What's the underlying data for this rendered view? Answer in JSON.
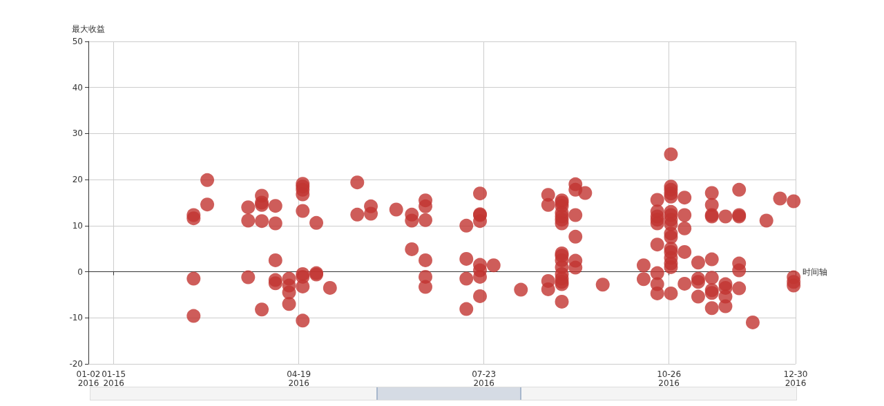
{
  "chart_data": {
    "type": "scatter",
    "xlabel": "时间轴",
    "ylabel": "最大收益",
    "color": "#c23531",
    "marker": "circle",
    "grid": true,
    "xlim": [
      "2016-01-02",
      "2016-12-30"
    ],
    "xticks": [
      {
        "value": "2016-01-02",
        "label": "01-02\n2016"
      },
      {
        "value": "2016-01-15",
        "label": "01-15\n2016"
      },
      {
        "value": "2016-04-19",
        "label": "04-19\n2016"
      },
      {
        "value": "2016-07-23",
        "label": "07-23\n2016"
      },
      {
        "value": "2016-10-26",
        "label": "10-26\n2016"
      },
      {
        "value": "2016-12-30",
        "label": "12-30\n2016"
      }
    ],
    "ylim": [
      -20,
      50
    ],
    "yticks": [
      -20,
      -10,
      0,
      10,
      20,
      30,
      40,
      50
    ],
    "x": [
      "2016-02-25",
      "2016-02-25",
      "2016-02-25",
      "2016-02-25",
      "2016-03-03",
      "2016-03-03",
      "2016-03-24",
      "2016-03-24",
      "2016-03-24",
      "2016-03-31",
      "2016-03-31",
      "2016-03-31",
      "2016-03-31",
      "2016-03-31",
      "2016-04-07",
      "2016-04-07",
      "2016-04-07",
      "2016-04-07",
      "2016-04-07",
      "2016-04-14",
      "2016-04-14",
      "2016-04-14",
      "2016-04-14",
      "2016-04-21",
      "2016-04-21",
      "2016-04-21",
      "2016-04-21",
      "2016-04-21",
      "2016-04-21",
      "2016-04-21",
      "2016-04-21",
      "2016-04-21",
      "2016-04-28",
      "2016-04-28",
      "2016-04-28",
      "2016-05-05",
      "2016-05-19",
      "2016-05-19",
      "2016-05-26",
      "2016-05-26",
      "2016-06-08",
      "2016-06-16",
      "2016-06-16",
      "2016-06-16",
      "2016-06-23",
      "2016-06-23",
      "2016-06-23",
      "2016-06-23",
      "2016-06-23",
      "2016-06-23",
      "2016-07-14",
      "2016-07-14",
      "2016-07-14",
      "2016-07-14",
      "2016-07-21",
      "2016-07-21",
      "2016-07-21",
      "2016-07-21",
      "2016-07-21",
      "2016-07-21",
      "2016-07-21",
      "2016-07-21",
      "2016-07-28",
      "2016-08-11",
      "2016-08-25",
      "2016-08-25",
      "2016-08-25",
      "2016-08-25",
      "2016-09-01",
      "2016-09-01",
      "2016-09-01",
      "2016-09-01",
      "2016-09-01",
      "2016-09-01",
      "2016-09-01",
      "2016-09-01",
      "2016-09-01",
      "2016-09-01",
      "2016-09-01",
      "2016-09-01",
      "2016-09-01",
      "2016-09-01",
      "2016-09-01",
      "2016-09-01",
      "2016-09-08",
      "2016-09-08",
      "2016-09-08",
      "2016-09-08",
      "2016-09-08",
      "2016-09-08",
      "2016-09-13",
      "2016-09-22",
      "2016-10-13",
      "2016-10-13",
      "2016-10-20",
      "2016-10-20",
      "2016-10-20",
      "2016-10-20",
      "2016-10-20",
      "2016-10-20",
      "2016-10-20",
      "2016-10-20",
      "2016-10-20",
      "2016-10-27",
      "2016-10-27",
      "2016-10-27",
      "2016-10-27",
      "2016-10-27",
      "2016-10-27",
      "2016-10-27",
      "2016-10-27",
      "2016-10-27",
      "2016-10-27",
      "2016-10-27",
      "2016-10-27",
      "2016-10-27",
      "2016-10-27",
      "2016-10-27",
      "2016-10-27",
      "2016-10-27",
      "2016-11-03",
      "2016-11-03",
      "2016-11-03",
      "2016-11-03",
      "2016-11-03",
      "2016-11-10",
      "2016-11-10",
      "2016-11-10",
      "2016-11-10",
      "2016-11-17",
      "2016-11-17",
      "2016-11-17",
      "2016-11-17",
      "2016-11-17",
      "2016-11-17",
      "2016-11-17",
      "2016-11-17",
      "2016-11-17",
      "2016-11-24",
      "2016-11-24",
      "2016-11-24",
      "2016-11-24",
      "2016-11-24",
      "2016-12-01",
      "2016-12-01",
      "2016-12-01",
      "2016-12-01",
      "2016-12-01",
      "2016-12-01",
      "2016-12-08",
      "2016-12-15",
      "2016-12-22",
      "2016-12-29",
      "2016-12-29",
      "2016-12-29",
      "2016-12-29"
    ],
    "values": [
      12.3,
      11.6,
      -1.5,
      -9.6,
      19.9,
      14.6,
      14.0,
      11.1,
      -1.2,
      16.5,
      15.0,
      14.5,
      11.0,
      -8.2,
      14.3,
      10.5,
      2.5,
      -1.8,
      -2.5,
      -1.5,
      -3.0,
      -4.5,
      -7.0,
      19.1,
      18.5,
      17.8,
      16.8,
      13.2,
      -0.5,
      -1.1,
      -3.2,
      -10.6,
      10.6,
      -0.3,
      -0.6,
      -3.5,
      19.4,
      12.4,
      14.2,
      12.6,
      13.5,
      12.4,
      11.1,
      4.9,
      15.5,
      14.2,
      11.2,
      2.5,
      -1.1,
      -3.3,
      10.0,
      2.8,
      -1.5,
      -8.1,
      17.0,
      12.5,
      12.3,
      11.0,
      1.5,
      0.3,
      -1.1,
      -5.3,
      1.4,
      -3.9,
      16.7,
      14.5,
      -2.0,
      -3.8,
      15.5,
      15.0,
      14.3,
      12.8,
      12.0,
      11.3,
      10.5,
      4.0,
      3.5,
      2.5,
      1.0,
      -0.5,
      -1.5,
      -2.2,
      -2.7,
      -6.5,
      19.0,
      17.8,
      12.3,
      7.6,
      2.4,
      0.9,
      17.1,
      -2.8,
      1.4,
      -1.6,
      15.6,
      13.1,
      12.0,
      11.3,
      10.5,
      5.9,
      -0.3,
      -2.7,
      -4.7,
      25.5,
      18.5,
      17.8,
      17.0,
      16.3,
      13.0,
      12.3,
      11.3,
      10.3,
      8.3,
      7.5,
      5.0,
      4.3,
      3.0,
      1.8,
      1.0,
      -4.7,
      16.1,
      12.3,
      9.4,
      4.3,
      -2.6,
      2.0,
      -1.5,
      -2.2,
      -5.4,
      17.1,
      14.5,
      12.3,
      12.0,
      2.7,
      -1.3,
      -4.0,
      -4.6,
      -7.9,
      12.0,
      -2.7,
      -3.5,
      -5.4,
      -7.5,
      17.8,
      12.3,
      12.0,
      1.8,
      0.3,
      -3.6,
      -11.0,
      11.1,
      15.9,
      15.3,
      -1.2,
      -2.2,
      -3.0
    ]
  }
}
